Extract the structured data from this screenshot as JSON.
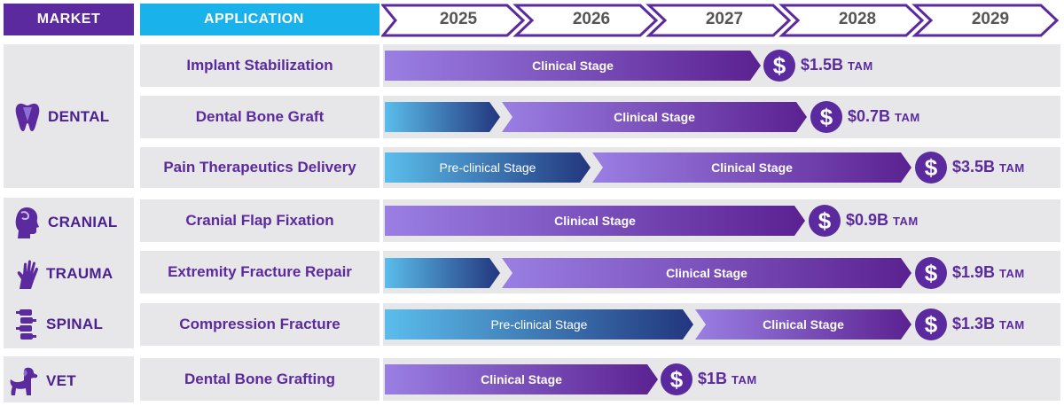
{
  "header": {
    "market_label": "MARKET",
    "application_label": "APPLICATION",
    "years": [
      "2025",
      "2026",
      "2027",
      "2028",
      "2029"
    ]
  },
  "markets": [
    {
      "name": "DENTAL",
      "icon": "tooth-icon"
    },
    {
      "name": "CRANIAL",
      "icon": "head-profile-icon"
    },
    {
      "name": "TRAUMA",
      "icon": "hand-icon"
    },
    {
      "name": "SPINAL",
      "icon": "spine-icon"
    },
    {
      "name": "VET",
      "icon": "dog-icon"
    }
  ],
  "rows": [
    {
      "application": "Implant Stabilization",
      "clinical_label": "Clinical Stage",
      "tam_value": "$1.5B",
      "tam_unit": "TAM"
    },
    {
      "application": "Dental Bone Graft",
      "clinical_label": "Clinical Stage",
      "tam_value": "$0.7B",
      "tam_unit": "TAM"
    },
    {
      "application": "Pain Therapeutics Delivery",
      "preclinical_label": "Pre-clinical Stage",
      "clinical_label": "Clinical Stage",
      "tam_value": "$3.5B",
      "tam_unit": "TAM"
    },
    {
      "application": "Cranial Flap Fixation",
      "clinical_label": "Clinical Stage",
      "tam_value": "$0.9B",
      "tam_unit": "TAM"
    },
    {
      "application": "Extremity Fracture Repair",
      "clinical_label": "Clinical Stage",
      "tam_value": "$1.9B",
      "tam_unit": "TAM"
    },
    {
      "application": "Compression Fracture",
      "preclinical_label": "Pre-clinical Stage",
      "clinical_label": "Clinical Stage",
      "tam_value": "$1.3B",
      "tam_unit": "TAM"
    },
    {
      "application": "Dental Bone Grafting",
      "clinical_label": "Clinical Stage",
      "tam_value": "$1B",
      "tam_unit": "TAM"
    }
  ],
  "dollar_symbol": "$",
  "colors": {
    "market_header": "#5b2a9e",
    "application_header": "#1ab2ea",
    "clinical_start": "#9a7fe3",
    "clinical_end": "#5b2191",
    "preclinical_start": "#5bbdeb",
    "preclinical_end": "#22367e",
    "panel": "#e7e6e8"
  }
}
